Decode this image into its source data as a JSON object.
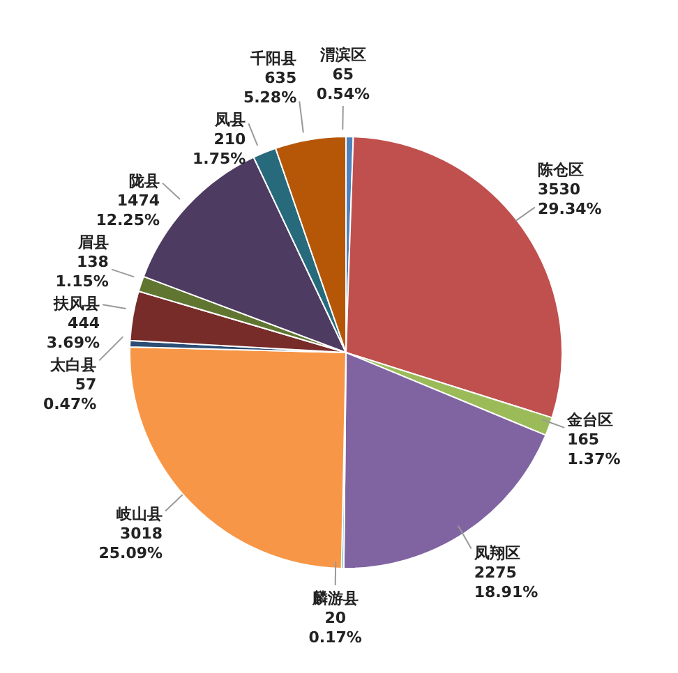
{
  "chart_data": {
    "type": "pie",
    "categories": [
      "渭滨区",
      "陈仓区",
      "金台区",
      "凤翔区",
      "麟游县",
      "岐山县",
      "太白县",
      "扶风县",
      "眉县",
      "陇县",
      "凤县",
      "千阳县"
    ],
    "values": [
      65,
      3530,
      165,
      2275,
      20,
      3018,
      57,
      444,
      138,
      1474,
      210,
      635
    ],
    "colors": [
      "#4f81bd",
      "#c0504d",
      "#9bbb59",
      "#8064a2",
      "#4bacc6",
      "#f79646",
      "#2c4d75",
      "#772c2a",
      "#5f7530",
      "#4d3b62",
      "#276a7c",
      "#b65708"
    ],
    "value_labels": [
      "65\n0.54%",
      "3530\n29.34%",
      "165\n1.37%",
      "2275\n18.91%",
      "20\n0.17%",
      "3018\n25.09%",
      "57\n0.47%",
      "444\n3.69%",
      "138\n1.15%",
      "1474\n12.25%",
      "210\n1.75%",
      "635\n5.28%"
    ],
    "legend": false
  }
}
